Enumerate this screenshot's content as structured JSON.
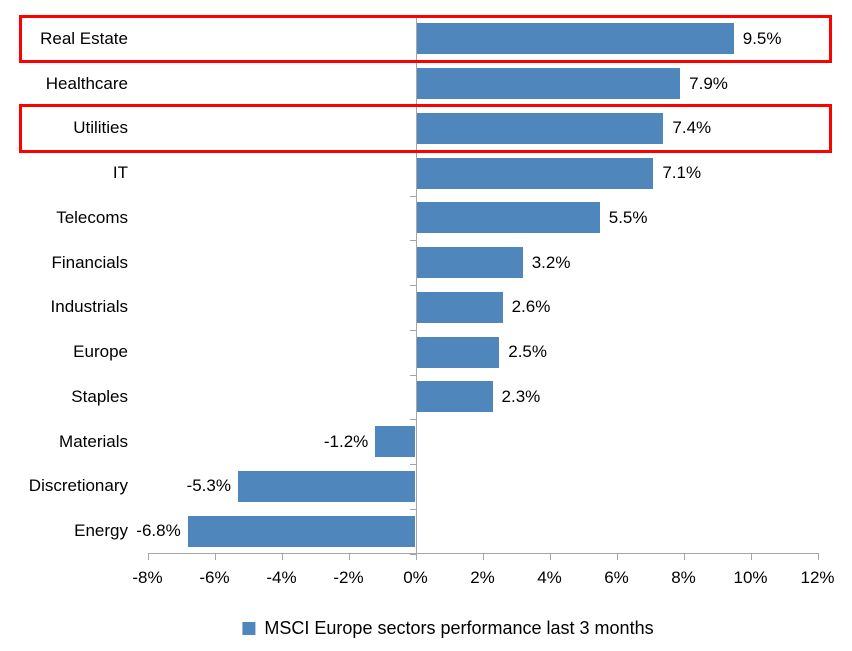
{
  "chart_data": {
    "type": "bar",
    "orientation": "horizontal",
    "title": "",
    "categories": [
      "Real Estate",
      "Healthcare",
      "Utilities",
      "IT",
      "Telecoms",
      "Financials",
      "Industrials",
      "Europe",
      "Staples",
      "Materials",
      "Discretionary",
      "Energy"
    ],
    "values": [
      9.5,
      7.9,
      7.4,
      7.1,
      5.5,
      3.2,
      2.6,
      2.5,
      2.3,
      -1.2,
      -5.3,
      -6.8
    ],
    "value_labels": [
      "9.5%",
      "7.9%",
      "7.4%",
      "7.1%",
      "5.5%",
      "3.2%",
      "2.6%",
      "2.5%",
      "2.3%",
      "-1.2%",
      "-5.3%",
      "-6.8%"
    ],
    "highlighted_categories": [
      "Real Estate",
      "Utilities"
    ],
    "x_axis": {
      "min": -8,
      "max": 12,
      "step": 2,
      "tick_labels": [
        "-8%",
        "-6%",
        "-4%",
        "-2%",
        "0%",
        "2%",
        "4%",
        "6%",
        "8%",
        "10%",
        "12%"
      ]
    },
    "grid": false,
    "legend": {
      "position": "bottom",
      "marker": "blue-square",
      "label": "MSCI Europe sectors performance last 3 months"
    },
    "colors": {
      "bar": "#4F86BC",
      "axis": "#A6A6A6",
      "highlight_box": "#FF0000",
      "text": "#000000",
      "background": "#FFFFFF"
    }
  }
}
